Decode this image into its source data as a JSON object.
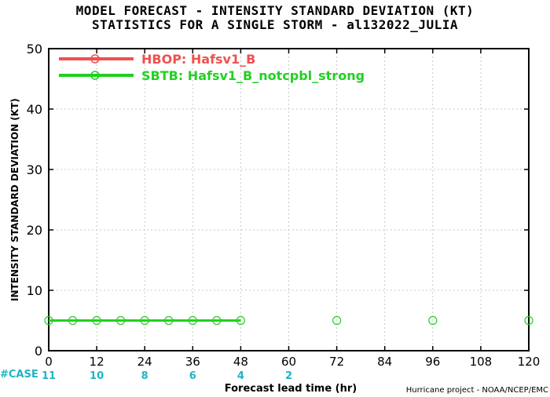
{
  "title_line1": "MODEL FORECAST - INTENSITY STANDARD DEVIATION (KT)",
  "title_line2": "STATISTICS FOR A SINGLE STORM - al132022_JULIA",
  "ylabel": "INTENSITY STANDARD DEVIATION (KT)",
  "xlabel": "Forecast lead time (hr)",
  "credit": "Hurricane project - NOAA/NCEP/EMC",
  "case_label": "#CASE",
  "colors": {
    "hbop": "#f05050",
    "sbtb": "#22d022",
    "case": "#1fb5c4",
    "grid": "#c8c8c8"
  },
  "chart_data": {
    "type": "line",
    "xlim": [
      0,
      120
    ],
    "ylim": [
      0,
      50
    ],
    "xticks": [
      0,
      12,
      24,
      36,
      48,
      60,
      72,
      84,
      96,
      108,
      120
    ],
    "yticks": [
      0,
      10,
      20,
      30,
      40,
      50
    ],
    "grid": true,
    "legend_position": "top-left",
    "series": [
      {
        "name": "HBOP: Hafsv1_B",
        "color": "#f05050",
        "x": [],
        "y": []
      },
      {
        "name": "SBTB: Hafsv1_B_notcpbl_strong",
        "color": "#22d022",
        "x": [
          0,
          6,
          12,
          18,
          24,
          30,
          36,
          42,
          48,
          72,
          96,
          120
        ],
        "y": [
          5,
          5,
          5,
          5,
          5,
          5,
          5,
          5,
          5,
          5,
          5,
          5
        ],
        "line_until_x": 48
      }
    ],
    "cases": [
      {
        "x": 0,
        "n": "11"
      },
      {
        "x": 12,
        "n": "10"
      },
      {
        "x": 24,
        "n": "8"
      },
      {
        "x": 36,
        "n": "6"
      },
      {
        "x": 48,
        "n": "4"
      },
      {
        "x": 60,
        "n": "2"
      }
    ]
  }
}
